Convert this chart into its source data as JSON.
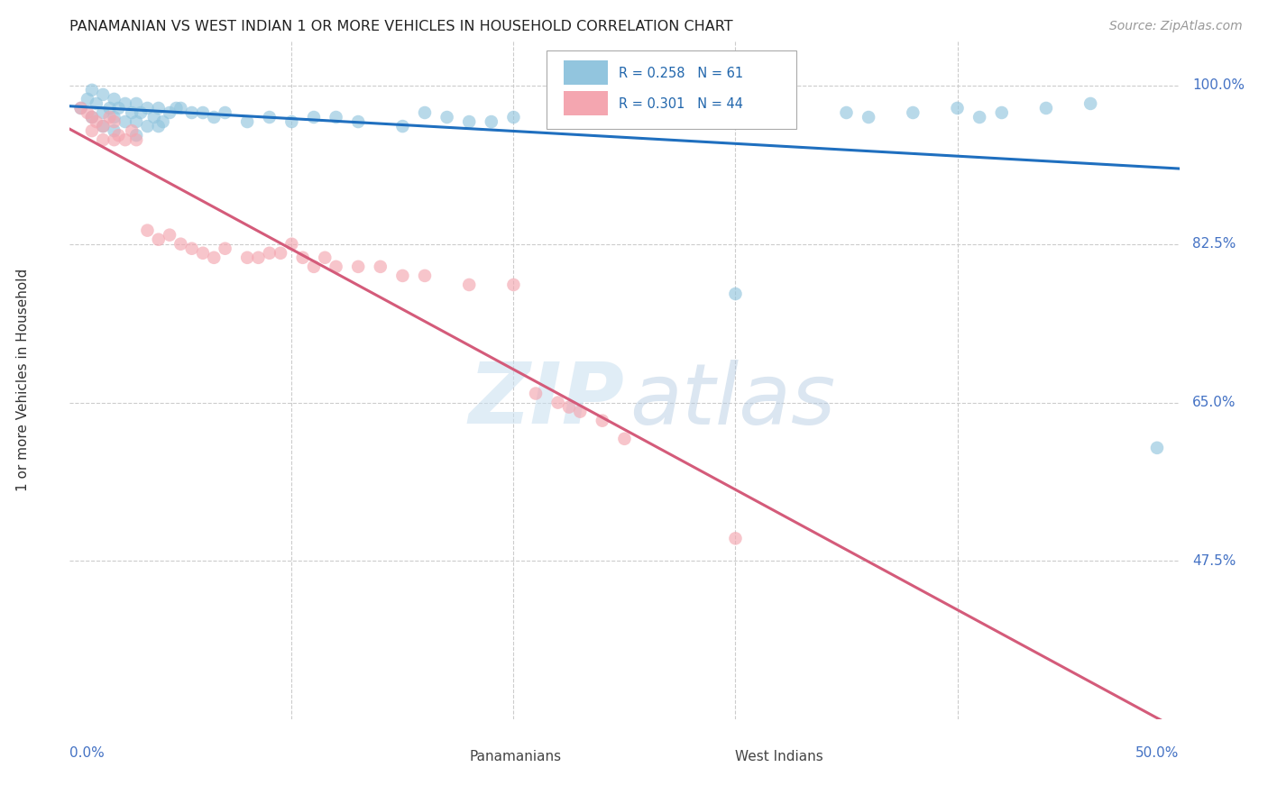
{
  "title": "PANAMANIAN VS WEST INDIAN 1 OR MORE VEHICLES IN HOUSEHOLD CORRELATION CHART",
  "source": "Source: ZipAtlas.com",
  "ylabel": "1 or more Vehicles in Household",
  "xlim": [
    0.0,
    0.5
  ],
  "ylim": [
    0.3,
    1.05
  ],
  "ytick_values": [
    1.0,
    0.825,
    0.65,
    0.475
  ],
  "ytick_labels": [
    "100.0%",
    "82.5%",
    "65.0%",
    "47.5%"
  ],
  "blue_color": "#92c5de",
  "pink_color": "#f4a6b0",
  "blue_line_color": "#1f6fbf",
  "pink_line_color": "#d45b7a",
  "legend_text_color": "#2166ac",
  "axis_label_color": "#4472c4",
  "watermark": "ZIPatlas",
  "blue_R": "R = 0.258",
  "blue_N": "N = 61",
  "pink_R": "R = 0.301",
  "pink_N": "N = 44",
  "blue_x": [
    0.005,
    0.008,
    0.01,
    0.01,
    0.012,
    0.015,
    0.015,
    0.015,
    0.018,
    0.02,
    0.02,
    0.02,
    0.022,
    0.025,
    0.025,
    0.028,
    0.03,
    0.03,
    0.03,
    0.032,
    0.035,
    0.035,
    0.038,
    0.04,
    0.04,
    0.042,
    0.045,
    0.048,
    0.05,
    0.055,
    0.06,
    0.065,
    0.07,
    0.08,
    0.09,
    0.1,
    0.11,
    0.12,
    0.13,
    0.15,
    0.16,
    0.17,
    0.18,
    0.19,
    0.2,
    0.22,
    0.23,
    0.24,
    0.25,
    0.27,
    0.3,
    0.32,
    0.35,
    0.36,
    0.38,
    0.4,
    0.41,
    0.42,
    0.44,
    0.46,
    0.49
  ],
  "blue_y": [
    0.975,
    0.985,
    0.965,
    0.995,
    0.98,
    0.99,
    0.97,
    0.955,
    0.975,
    0.985,
    0.965,
    0.95,
    0.975,
    0.98,
    0.96,
    0.97,
    0.98,
    0.96,
    0.945,
    0.97,
    0.975,
    0.955,
    0.965,
    0.975,
    0.955,
    0.96,
    0.97,
    0.975,
    0.975,
    0.97,
    0.97,
    0.965,
    0.97,
    0.96,
    0.965,
    0.96,
    0.965,
    0.965,
    0.96,
    0.955,
    0.97,
    0.965,
    0.96,
    0.96,
    0.965,
    0.96,
    0.965,
    0.96,
    0.96,
    0.965,
    0.77,
    0.965,
    0.97,
    0.965,
    0.97,
    0.975,
    0.965,
    0.97,
    0.975,
    0.98,
    0.6
  ],
  "pink_x": [
    0.005,
    0.008,
    0.01,
    0.01,
    0.012,
    0.015,
    0.015,
    0.018,
    0.02,
    0.02,
    0.022,
    0.025,
    0.028,
    0.03,
    0.035,
    0.04,
    0.045,
    0.05,
    0.055,
    0.06,
    0.065,
    0.07,
    0.08,
    0.085,
    0.09,
    0.095,
    0.1,
    0.105,
    0.11,
    0.115,
    0.12,
    0.13,
    0.14,
    0.15,
    0.16,
    0.18,
    0.2,
    0.21,
    0.22,
    0.225,
    0.23,
    0.24,
    0.25,
    0.3
  ],
  "pink_y": [
    0.975,
    0.97,
    0.965,
    0.95,
    0.96,
    0.955,
    0.94,
    0.965,
    0.96,
    0.94,
    0.945,
    0.94,
    0.95,
    0.94,
    0.84,
    0.83,
    0.835,
    0.825,
    0.82,
    0.815,
    0.81,
    0.82,
    0.81,
    0.81,
    0.815,
    0.815,
    0.825,
    0.81,
    0.8,
    0.81,
    0.8,
    0.8,
    0.8,
    0.79,
    0.79,
    0.78,
    0.78,
    0.66,
    0.65,
    0.645,
    0.64,
    0.63,
    0.61,
    0.5
  ]
}
